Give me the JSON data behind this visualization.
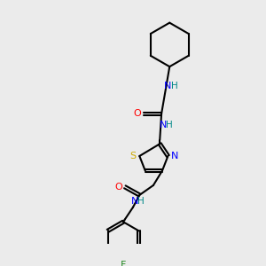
{
  "background_color": "#ebebeb",
  "line_color": "#000000",
  "atom_colors": {
    "N": "#0000ff",
    "O": "#ff0000",
    "S": "#ccaa00",
    "F": "#228822",
    "H": "#008888"
  },
  "figsize": [
    3.0,
    3.0
  ],
  "dpi": 100
}
